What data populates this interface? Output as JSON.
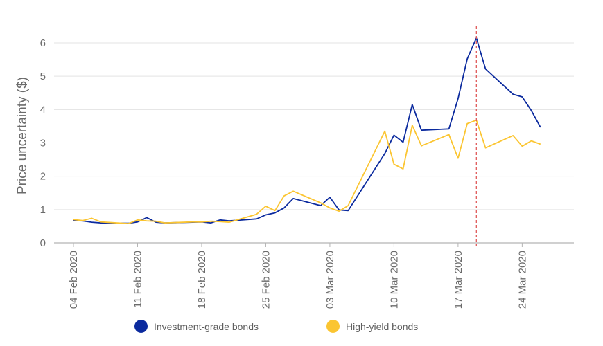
{
  "chart_data": {
    "type": "line",
    "ylabel": "Price uncertainty ($)",
    "xlabel": "",
    "ylim": [
      0,
      6.5
    ],
    "y_ticks": [
      0,
      1,
      2,
      3,
      4,
      5,
      6
    ],
    "x_range": [
      "2020-02-04",
      "2020-03-27"
    ],
    "x_tick_dates": [
      "2020-02-04",
      "2020-02-11",
      "2020-02-18",
      "2020-02-25",
      "2020-03-03",
      "2020-03-10",
      "2020-03-17",
      "2020-03-24"
    ],
    "x_tick_labels": [
      "04 Feb 2020",
      "11 Feb 2020",
      "18 Feb 2020",
      "25 Feb 2020",
      "03 Mar 2020",
      "10 Mar 2020",
      "17 Mar 2020",
      "24 Mar 2020"
    ],
    "grid": true,
    "reference_line": {
      "date": "2020-03-19",
      "color": "#e05a5a",
      "style": "dashed"
    },
    "legend_position": "bottom",
    "series": [
      {
        "name": "Investment-grade bonds",
        "color": "#0b2a9e",
        "points": [
          [
            "2020-02-04",
            0.67
          ],
          [
            "2020-02-05",
            0.66
          ],
          [
            "2020-02-06",
            0.62
          ],
          [
            "2020-02-07",
            0.6
          ],
          [
            "2020-02-10",
            0.59
          ],
          [
            "2020-02-11",
            0.63
          ],
          [
            "2020-02-12",
            0.76
          ],
          [
            "2020-02-13",
            0.62
          ],
          [
            "2020-02-14",
            0.6
          ],
          [
            "2020-02-17",
            0.62
          ],
          [
            "2020-02-18",
            0.63
          ],
          [
            "2020-02-19",
            0.6
          ],
          [
            "2020-02-20",
            0.69
          ],
          [
            "2020-02-21",
            0.66
          ],
          [
            "2020-02-24",
            0.72
          ],
          [
            "2020-02-25",
            0.84
          ],
          [
            "2020-02-26",
            0.9
          ],
          [
            "2020-02-27",
            1.05
          ],
          [
            "2020-02-28",
            1.33
          ],
          [
            "2020-03-02",
            1.12
          ],
          [
            "2020-03-03",
            1.37
          ],
          [
            "2020-03-04",
            0.99
          ],
          [
            "2020-03-05",
            0.97
          ],
          [
            "2020-03-09",
            2.68
          ],
          [
            "2020-03-10",
            3.23
          ],
          [
            "2020-03-11",
            3.02
          ],
          [
            "2020-03-12",
            4.15
          ],
          [
            "2020-03-13",
            3.38
          ],
          [
            "2020-03-16",
            3.42
          ],
          [
            "2020-03-17",
            4.33
          ],
          [
            "2020-03-18",
            5.52
          ],
          [
            "2020-03-19",
            6.15
          ],
          [
            "2020-03-20",
            5.22
          ],
          [
            "2020-03-23",
            4.46
          ],
          [
            "2020-03-24",
            4.38
          ],
          [
            "2020-03-25",
            3.97
          ],
          [
            "2020-03-26",
            3.47
          ]
        ]
      },
      {
        "name": "High-yield bonds",
        "color": "#fbc531",
        "points": [
          [
            "2020-02-04",
            0.7
          ],
          [
            "2020-02-05",
            0.67
          ],
          [
            "2020-02-06",
            0.74
          ],
          [
            "2020-02-07",
            0.63
          ],
          [
            "2020-02-10",
            0.58
          ],
          [
            "2020-02-11",
            0.69
          ],
          [
            "2020-02-12",
            0.66
          ],
          [
            "2020-02-13",
            0.65
          ],
          [
            "2020-02-14",
            0.6
          ],
          [
            "2020-02-17",
            0.63
          ],
          [
            "2020-02-18",
            0.63
          ],
          [
            "2020-02-19",
            0.65
          ],
          [
            "2020-02-20",
            0.64
          ],
          [
            "2020-02-21",
            0.62
          ],
          [
            "2020-02-24",
            0.86
          ],
          [
            "2020-02-25",
            1.1
          ],
          [
            "2020-02-26",
            0.97
          ],
          [
            "2020-02-27",
            1.41
          ],
          [
            "2020-02-28",
            1.55
          ],
          [
            "2020-03-02",
            1.2
          ],
          [
            "2020-03-03",
            1.05
          ],
          [
            "2020-03-04",
            0.95
          ],
          [
            "2020-03-05",
            1.12
          ],
          [
            "2020-03-09",
            3.35
          ],
          [
            "2020-03-10",
            2.36
          ],
          [
            "2020-03-11",
            2.22
          ],
          [
            "2020-03-12",
            3.53
          ],
          [
            "2020-03-13",
            2.91
          ],
          [
            "2020-03-16",
            3.25
          ],
          [
            "2020-03-17",
            2.54
          ],
          [
            "2020-03-18",
            3.58
          ],
          [
            "2020-03-19",
            3.68
          ],
          [
            "2020-03-20",
            2.85
          ],
          [
            "2020-03-23",
            3.22
          ],
          [
            "2020-03-24",
            2.9
          ],
          [
            "2020-03-25",
            3.06
          ],
          [
            "2020-03-26",
            2.96
          ]
        ]
      }
    ]
  }
}
